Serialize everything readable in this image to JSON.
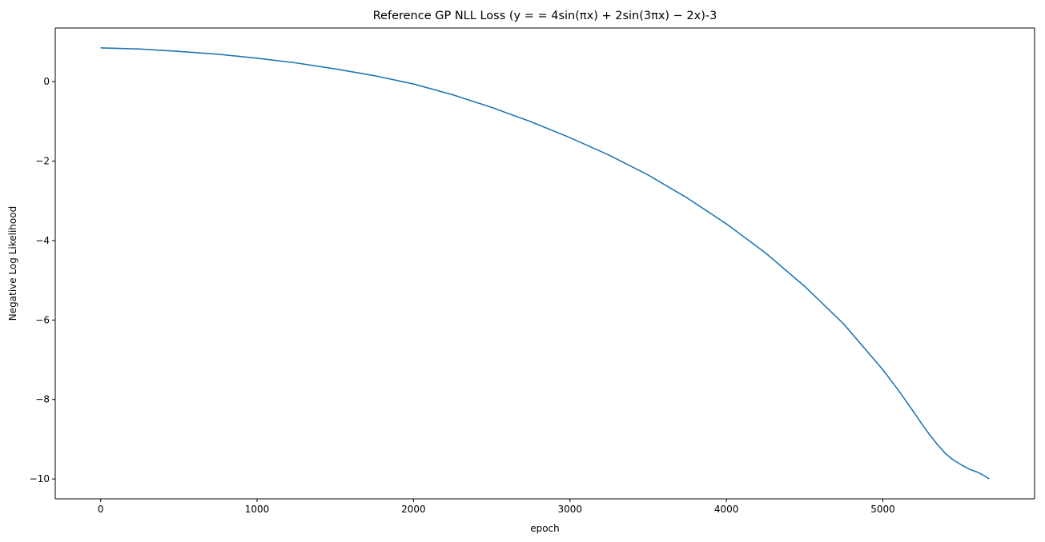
{
  "chart_data": {
    "type": "line",
    "title": "Reference GP NLL Loss ($y==4\\sin(\\pi x) + 2\\sin(3\\pi x) -2x$)-3",
    "title_display": "Reference GP NLL Loss (y = = 4sin(πx) + 2sin(3πx) − 2x)-3",
    "xlabel": "epoch",
    "ylabel": "Negative Log Likelihood",
    "xlim": [
      -290,
      5970
    ],
    "ylim": [
      -10.5,
      1.35
    ],
    "xticks": [
      0,
      1000,
      2000,
      3000,
      4000,
      5000
    ],
    "yticks": [
      0,
      -2,
      -4,
      -6,
      -8,
      -10
    ],
    "xtick_labels": [
      "0",
      "1000",
      "2000",
      "3000",
      "4000",
      "5000"
    ],
    "ytick_labels": [
      "0",
      "−2",
      "−4",
      "−6",
      "−8",
      "−10"
    ],
    "grid": false,
    "series": [
      {
        "color": "#1f77b4",
        "x": [
          0,
          250,
          500,
          750,
          1000,
          1250,
          1500,
          1750,
          2000,
          2250,
          2500,
          2750,
          3000,
          3250,
          3500,
          3750,
          4000,
          4250,
          4500,
          4750,
          5000,
          5100,
          5200,
          5250,
          5300,
          5350,
          5400,
          5450,
          5500,
          5550,
          5600,
          5650,
          5680
        ],
        "y": [
          0.85,
          0.82,
          0.76,
          0.69,
          0.59,
          0.47,
          0.32,
          0.15,
          -0.06,
          -0.33,
          -0.65,
          -1.01,
          -1.41,
          -1.85,
          -2.35,
          -2.93,
          -3.58,
          -4.31,
          -5.15,
          -6.1,
          -7.25,
          -7.77,
          -8.33,
          -8.62,
          -8.89,
          -9.14,
          -9.36,
          -9.52,
          -9.64,
          -9.75,
          -9.82,
          -9.92,
          -10.0
        ]
      }
    ]
  }
}
